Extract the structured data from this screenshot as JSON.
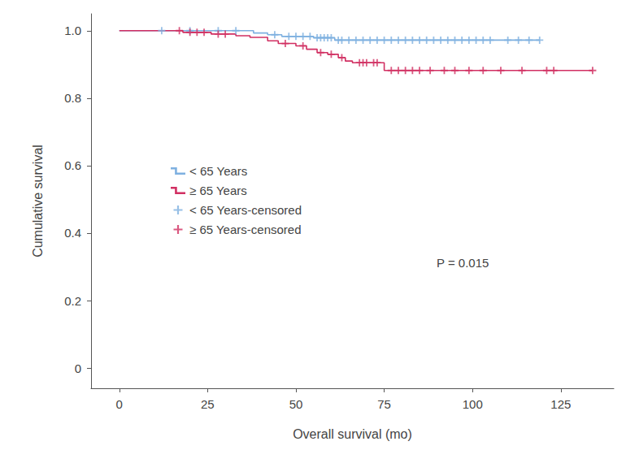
{
  "chart_data": {
    "type": "line",
    "x_label": "Overall survival (mo)",
    "y_label": "Cumulative survival",
    "annotations": [
      "P = 0.015"
    ],
    "xlim": [
      -8,
      140
    ],
    "xticks": [
      0,
      25,
      50,
      75,
      100,
      125
    ],
    "ylim": [
      -0.06,
      1.05
    ],
    "yticks": [
      0,
      0.2,
      0.4,
      0.6,
      0.8,
      {
        "value": 1,
        "label": "1.0"
      }
    ],
    "grid": false,
    "legend": "left",
    "series": [
      {
        "name": "< 65 Years",
        "type": "line",
        "line_style": "step",
        "color": "#7eb0e0",
        "x": [
          0,
          38,
          42,
          46,
          55,
          61,
          119
        ],
        "values": [
          1.0,
          0.993,
          0.988,
          0.983,
          0.979,
          0.972,
          0.972
        ]
      },
      {
        "name": "≥ 65 Years",
        "type": "line",
        "line_style": "step",
        "color": "#d12f62",
        "x": [
          0,
          18,
          26,
          33,
          37,
          42,
          45,
          50,
          53,
          56,
          59,
          62,
          64,
          66,
          75,
          134
        ],
        "values": [
          1.0,
          0.995,
          0.99,
          0.985,
          0.98,
          0.97,
          0.962,
          0.955,
          0.945,
          0.935,
          0.93,
          0.92,
          0.91,
          0.905,
          0.882,
          0.882
        ]
      },
      {
        "name": "< 65 Years-censored",
        "type": "scatter",
        "marker": "plus",
        "color": "#7eb0e0",
        "x": [
          12,
          20,
          28,
          33,
          44,
          48,
          50,
          52,
          54,
          56,
          57,
          58,
          59,
          60,
          62,
          63,
          65,
          67,
          69,
          71,
          73,
          75,
          77,
          79,
          81,
          83,
          85,
          87,
          89,
          91,
          93,
          95,
          97,
          99,
          101,
          103,
          105,
          110,
          113,
          116,
          119
        ],
        "values": [
          1.0,
          1.0,
          1.0,
          1.0,
          0.988,
          0.983,
          0.983,
          0.983,
          0.983,
          0.979,
          0.979,
          0.979,
          0.979,
          0.979,
          0.972,
          0.972,
          0.972,
          0.972,
          0.972,
          0.972,
          0.972,
          0.972,
          0.972,
          0.972,
          0.972,
          0.972,
          0.972,
          0.972,
          0.972,
          0.972,
          0.972,
          0.972,
          0.972,
          0.972,
          0.972,
          0.972,
          0.972,
          0.972,
          0.972,
          0.972,
          0.972
        ]
      },
      {
        "name": "≥ 65 Years-censored",
        "type": "scatter",
        "marker": "plus",
        "color": "#d12f62",
        "x": [
          17,
          20,
          22,
          24,
          28,
          30,
          47,
          52,
          57,
          60,
          63,
          68,
          69,
          70,
          72,
          73,
          77,
          79,
          81,
          83,
          85,
          88,
          92,
          95,
          99,
          103,
          108,
          114,
          121,
          123,
          134
        ],
        "values": [
          1.0,
          0.995,
          0.995,
          0.995,
          0.99,
          0.99,
          0.962,
          0.955,
          0.935,
          0.93,
          0.92,
          0.905,
          0.905,
          0.905,
          0.905,
          0.905,
          0.882,
          0.882,
          0.882,
          0.882,
          0.882,
          0.882,
          0.882,
          0.882,
          0.882,
          0.882,
          0.882,
          0.882,
          0.882,
          0.882,
          0.882
        ]
      }
    ]
  }
}
